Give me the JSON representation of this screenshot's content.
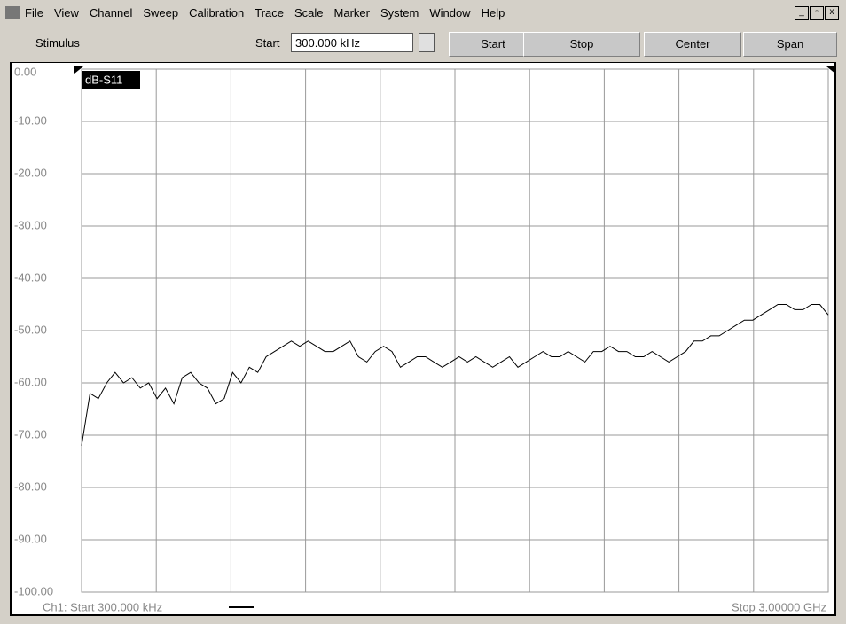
{
  "menu": [
    "File",
    "View",
    "Channel",
    "Sweep",
    "Calibration",
    "Trace",
    "Scale",
    "Marker",
    "System",
    "Window",
    "Help"
  ],
  "toolbar": {
    "section": "Stimulus",
    "field_label": "Start",
    "field_value": "300.000 kHz",
    "buttons": [
      "Start",
      "Stop",
      "Center",
      "Span"
    ]
  },
  "chart_data": {
    "type": "line",
    "trace_label": "dB-S11",
    "footer_left": "Ch1: Start 300.000 kHz",
    "footer_right": "Stop 3.00000 GHz",
    "ylim": [
      -100,
      0
    ],
    "yticks": [
      {
        "value": 0,
        "label": "0.00"
      },
      {
        "value": -10,
        "label": "-10.00"
      },
      {
        "value": -20,
        "label": "-20.00"
      },
      {
        "value": -30,
        "label": "-30.00"
      },
      {
        "value": -40,
        "label": "-40.00"
      },
      {
        "value": -50,
        "label": "-50.00"
      },
      {
        "value": -60,
        "label": "-60.00"
      },
      {
        "value": -70,
        "label": "-70.00"
      },
      {
        "value": -80,
        "label": "-80.00"
      },
      {
        "value": -90,
        "label": "-90.00"
      },
      {
        "value": -100,
        "label": "-100.00"
      }
    ],
    "grid": true,
    "color": "#000000",
    "values": [
      -72,
      -62,
      -63,
      -60,
      -58,
      -60,
      -59,
      -61,
      -60,
      -63,
      -61,
      -64,
      -59,
      -58,
      -60,
      -61,
      -64,
      -63,
      -58,
      -60,
      -57,
      -58,
      -55,
      -54,
      -53,
      -52,
      -53,
      -52,
      -53,
      -54,
      -54,
      -53,
      -52,
      -55,
      -56,
      -54,
      -53,
      -54,
      -57,
      -56,
      -55,
      -55,
      -56,
      -57,
      -56,
      -55,
      -56,
      -55,
      -56,
      -57,
      -56,
      -55,
      -57,
      -56,
      -55,
      -54,
      -55,
      -55,
      -54,
      -55,
      -56,
      -54,
      -54,
      -53,
      -54,
      -54,
      -55,
      -55,
      -54,
      -55,
      -56,
      -55,
      -54,
      -52,
      -52,
      -51,
      -51,
      -50,
      -49,
      -48,
      -48,
      -47,
      -46,
      -45,
      -45,
      -46,
      -46,
      -45,
      -45,
      -47
    ]
  }
}
